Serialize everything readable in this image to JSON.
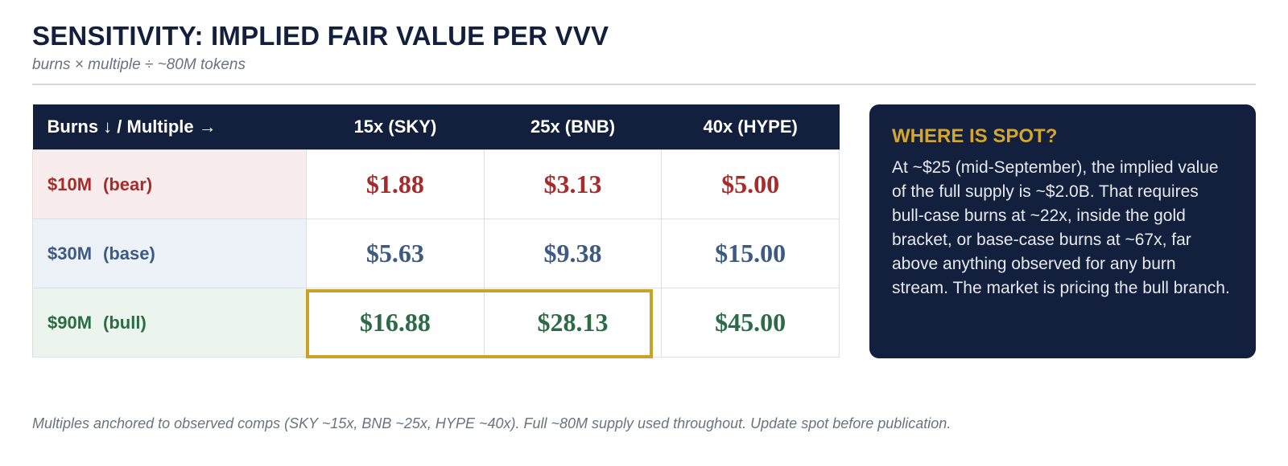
{
  "header": {
    "title": "SENSITIVITY: IMPLIED FAIR VALUE PER VVV",
    "subtitle": "burns × multiple ÷ ~80M tokens"
  },
  "table": {
    "corner_label": "Burns ↓ / Multiple →",
    "columns": [
      "15x (SKY)",
      "25x (BNB)",
      "40x (HYPE)"
    ],
    "rows": [
      {
        "burns": "$10M",
        "case": "(bear)",
        "values": [
          "$1.88",
          "$3.13",
          "$5.00"
        ],
        "color": "#a62b2b",
        "bg": "#f8ecec"
      },
      {
        "burns": "$30M",
        "case": "(base)",
        "values": [
          "$5.63",
          "$9.38",
          "$15.00"
        ],
        "color": "#3c5a82",
        "bg": "#edf2f9"
      },
      {
        "burns": "$90M",
        "case": "(bull)",
        "values": [
          "$16.88",
          "$28.13",
          "$45.00"
        ],
        "color": "#2b6b45",
        "bg": "#ecf4ee"
      }
    ],
    "highlight_color": "#c9a227",
    "header_bg": "#13203d"
  },
  "panel": {
    "title": "WHERE IS SPOT?",
    "body": "At ~$25 (mid-September), the implied value of the full supply is ~$2.0B. That requires bull-case burns at ~22x, inside the gold bracket, or base-case burns at ~67x, far above anything observed for any burn stream. The market is pricing the bull branch.",
    "title_color": "#d4a72c"
  },
  "footnote": "Multiples anchored to observed comps (SKY ~15x, BNB ~25x, HYPE ~40x). Full ~80M supply used throughout. Update spot before publication."
}
